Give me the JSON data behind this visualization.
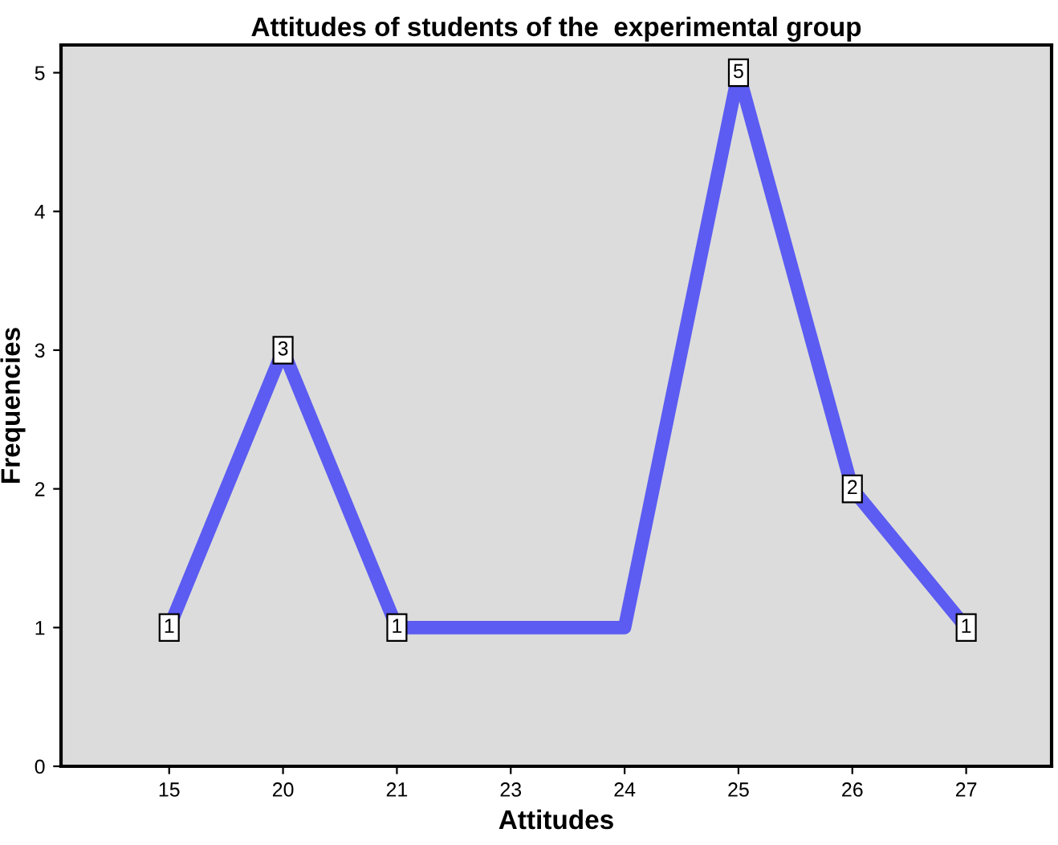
{
  "chart_data": {
    "type": "line",
    "title": "Attitudes of students of the  experimental group",
    "xlabel": "Attitudes",
    "ylabel": "Frequencies",
    "categories": [
      "15",
      "20",
      "21",
      "23",
      "24",
      "25",
      "26",
      "27"
    ],
    "series": [
      {
        "color": "#5c5cf2",
        "values": [
          1,
          3,
          1,
          1,
          1,
          5,
          2,
          1
        ],
        "value_labels": [
          "1",
          "3",
          "1",
          null,
          null,
          "5",
          "2",
          "1"
        ]
      }
    ],
    "ylim": [
      0,
      5.2
    ],
    "yticks": [
      0,
      1,
      2,
      3,
      4,
      5
    ],
    "grid": false,
    "line_style": "solid"
  }
}
